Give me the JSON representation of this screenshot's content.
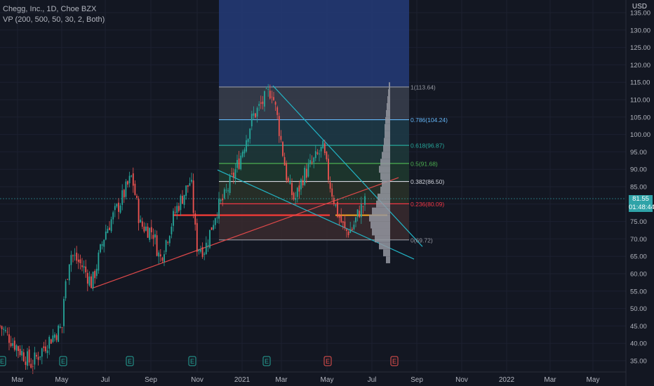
{
  "header": {
    "symbol_line": "Chegg, Inc., 1D, Choe BZX",
    "indicator_line": "VP (200, 500, 50, 30, 2, Both)"
  },
  "price_scale": {
    "currency": "USD",
    "ticks": [
      "35.00",
      "40.00",
      "45.00",
      "50.00",
      "55.00",
      "60.00",
      "65.00",
      "70.00",
      "75.00",
      "80.00",
      "85.00",
      "90.00",
      "95.00",
      "100.00",
      "105.00",
      "110.00",
      "115.00",
      "120.00",
      "125.00",
      "130.00",
      "135.00"
    ]
  },
  "time_scale": {
    "labels": [
      "Mar",
      "May",
      "Jul",
      "Sep",
      "Nov",
      "2021",
      "Mar",
      "May",
      "Jul",
      "Sep",
      "Nov",
      "2022",
      "Mar",
      "May"
    ]
  },
  "current_price": {
    "value": "81.55",
    "countdown": "01:48:44"
  },
  "fib_levels": [
    {
      "label": "1(113.64)",
      "price": 113.64,
      "color": "#9598a1"
    },
    {
      "label": "0.786(104.24)",
      "price": 104.24,
      "color": "#64b5f6"
    },
    {
      "label": "0.618(96.87)",
      "price": 96.87,
      "color": "#26a69a"
    },
    {
      "label": "0.5(91.68)",
      "price": 91.68,
      "color": "#4caf50"
    },
    {
      "label": "0.382(86.50)",
      "price": 86.5,
      "color": "#d1d4dc"
    },
    {
      "label": "0.236(80.09)",
      "price": 80.09,
      "color": "#f23645"
    },
    {
      "label": "0(69.72)",
      "price": 69.72,
      "color": "#9598a1"
    }
  ],
  "event_markers": [
    "E",
    "E",
    "E",
    "E",
    "E",
    "E",
    "E"
  ],
  "colors": {
    "background": "#131722",
    "up": "#26a69a",
    "down": "#ef5350",
    "trendline_red": "#e0494a",
    "trendline_teal": "#22b5c6",
    "volume_profile": "#9598a1",
    "poc": "#f5a623"
  }
}
